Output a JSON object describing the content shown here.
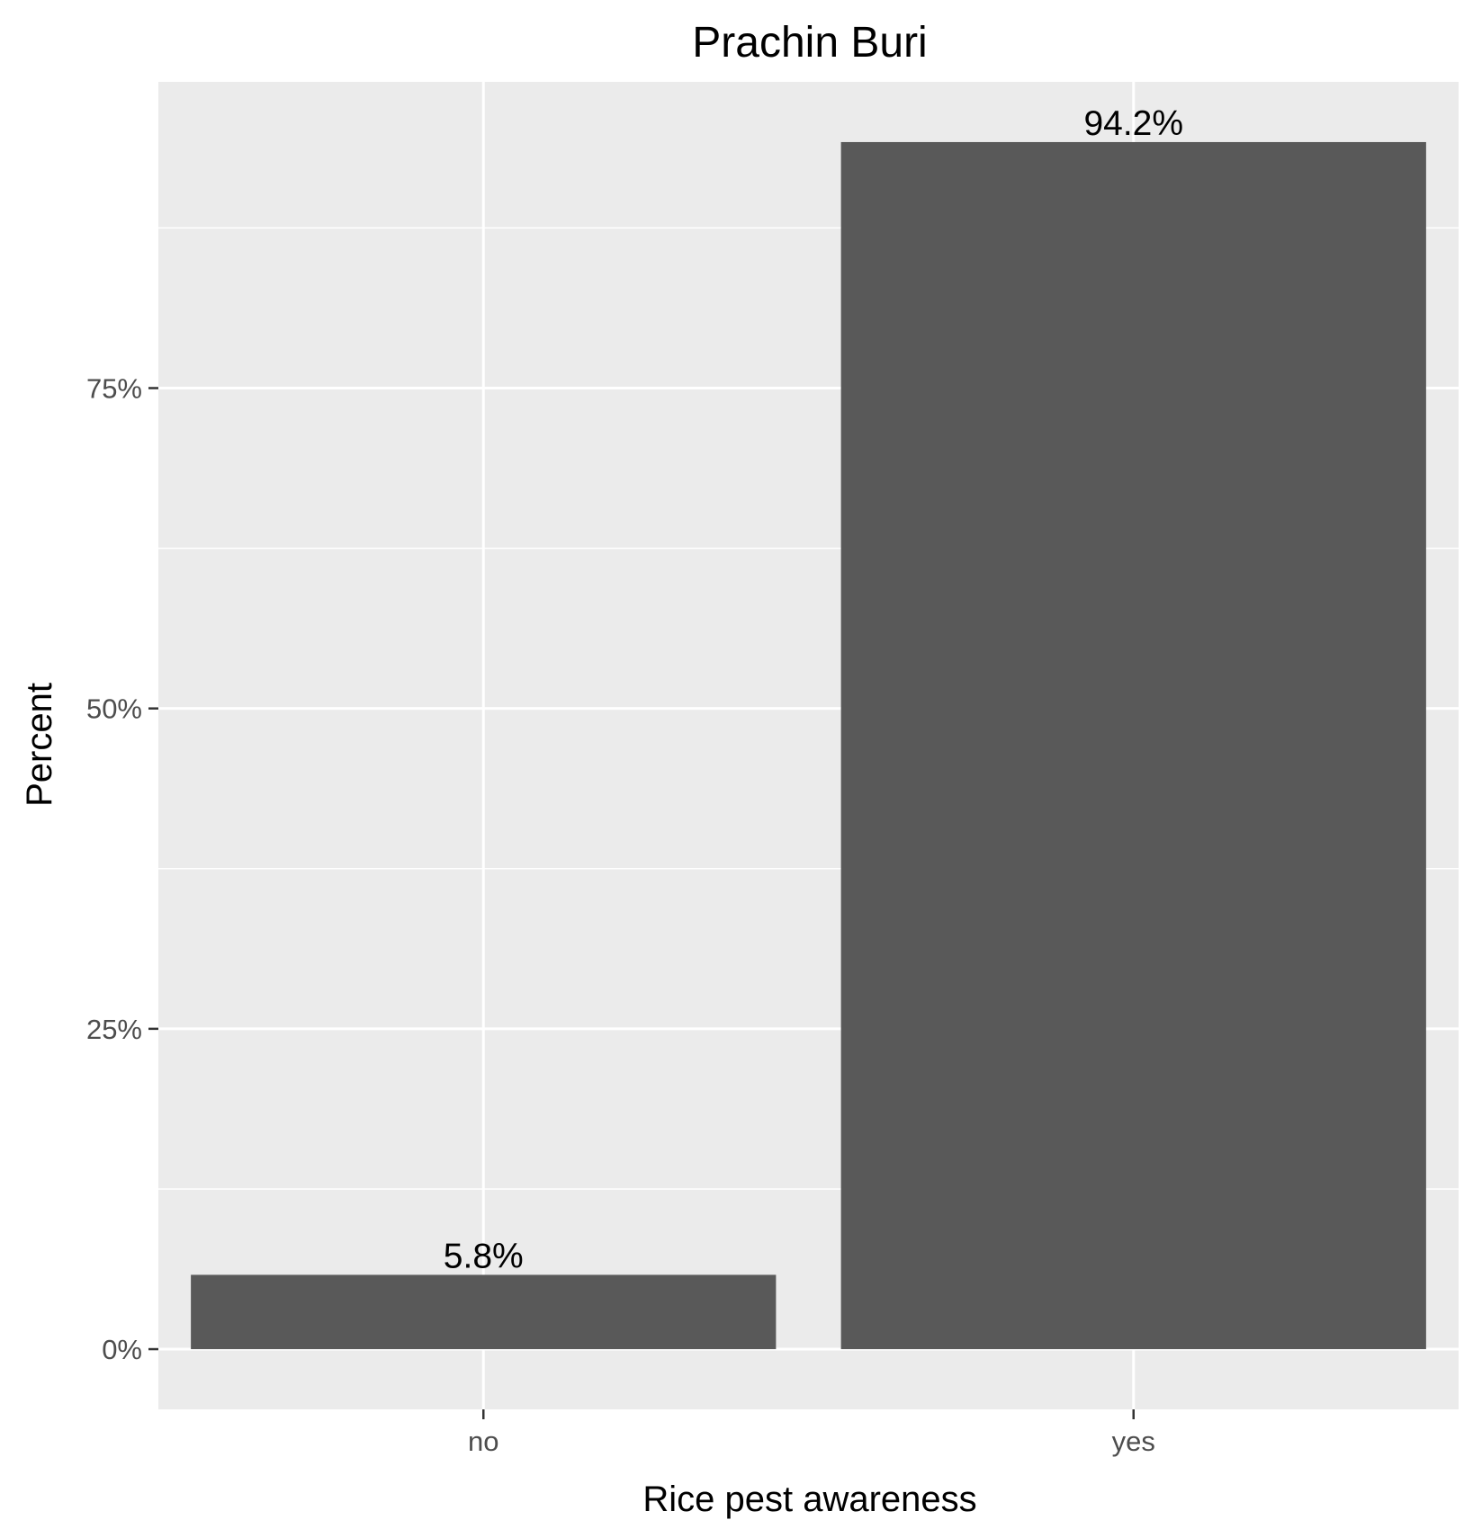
{
  "chart_data": {
    "type": "bar",
    "title": "Prachin Buri",
    "xlabel": "Rice pest awareness",
    "ylabel": "Percent",
    "categories": [
      "no",
      "yes"
    ],
    "values": [
      5.8,
      94.2
    ],
    "data_labels": [
      "5.8%",
      "94.2%"
    ],
    "ylim": [
      -4.7,
      98.9
    ],
    "yticks": [
      0,
      25,
      50,
      75
    ],
    "ytick_labels": [
      "0%",
      "25%",
      "50%",
      "75%"
    ],
    "y_minor_gridlines": [
      12.5,
      37.5,
      62.5,
      87.5
    ],
    "grid": true,
    "legend": "none"
  },
  "colors": {
    "panel_background": "#ebebeb",
    "gridline": "#ffffff",
    "bar_fill": "#595959",
    "tick_text": "#4d4d4d",
    "axis_tick": "#333333",
    "text": "#000000"
  }
}
